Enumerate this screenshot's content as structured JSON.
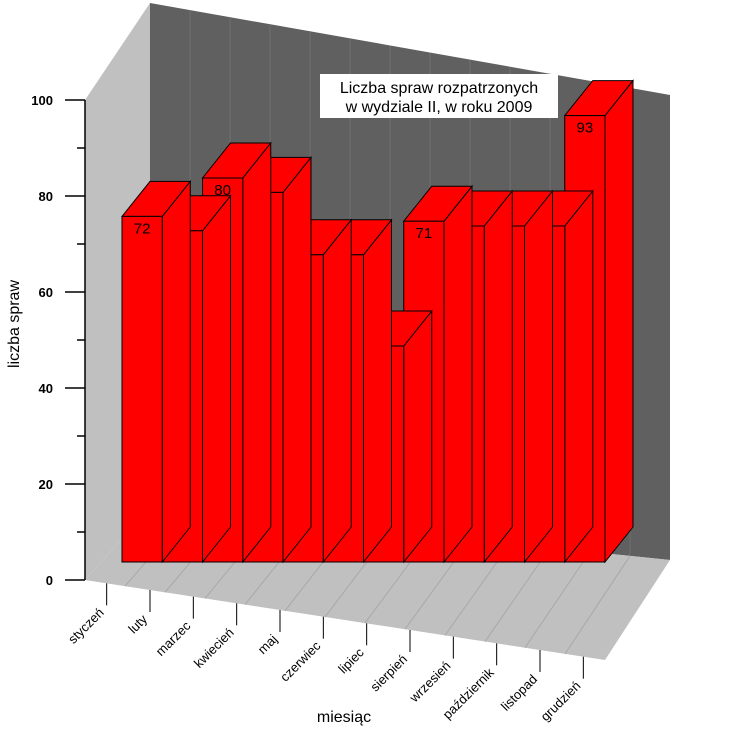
{
  "chart_data": {
    "type": "bar",
    "title": [
      "Liczba spraw rozpatrzonych",
      "w  wydziale II, w roku 2009"
    ],
    "xlabel": "miesiąc",
    "ylabel": "liczba spraw",
    "ylim": [
      0,
      100
    ],
    "yticks": [
      0,
      20,
      40,
      60,
      80,
      100
    ],
    "categories": [
      "styczeń",
      "luty",
      "marzec",
      "kwiecień",
      "maj",
      "czerwiec",
      "lipiec",
      "sierpień",
      "wrzesień",
      "październik",
      "listopad",
      "grudzień"
    ],
    "values": [
      72,
      69,
      80,
      77,
      64,
      64,
      45,
      71,
      70,
      70,
      70,
      93
    ],
    "colors": {
      "bar_front": "#ff0000",
      "bar_top": "#ff0000",
      "bar_side": "#ff0000",
      "back_wall": "#606060",
      "side_wall": "#c0c0c0",
      "floor": "#c0c0c0"
    },
    "style": "3d"
  }
}
